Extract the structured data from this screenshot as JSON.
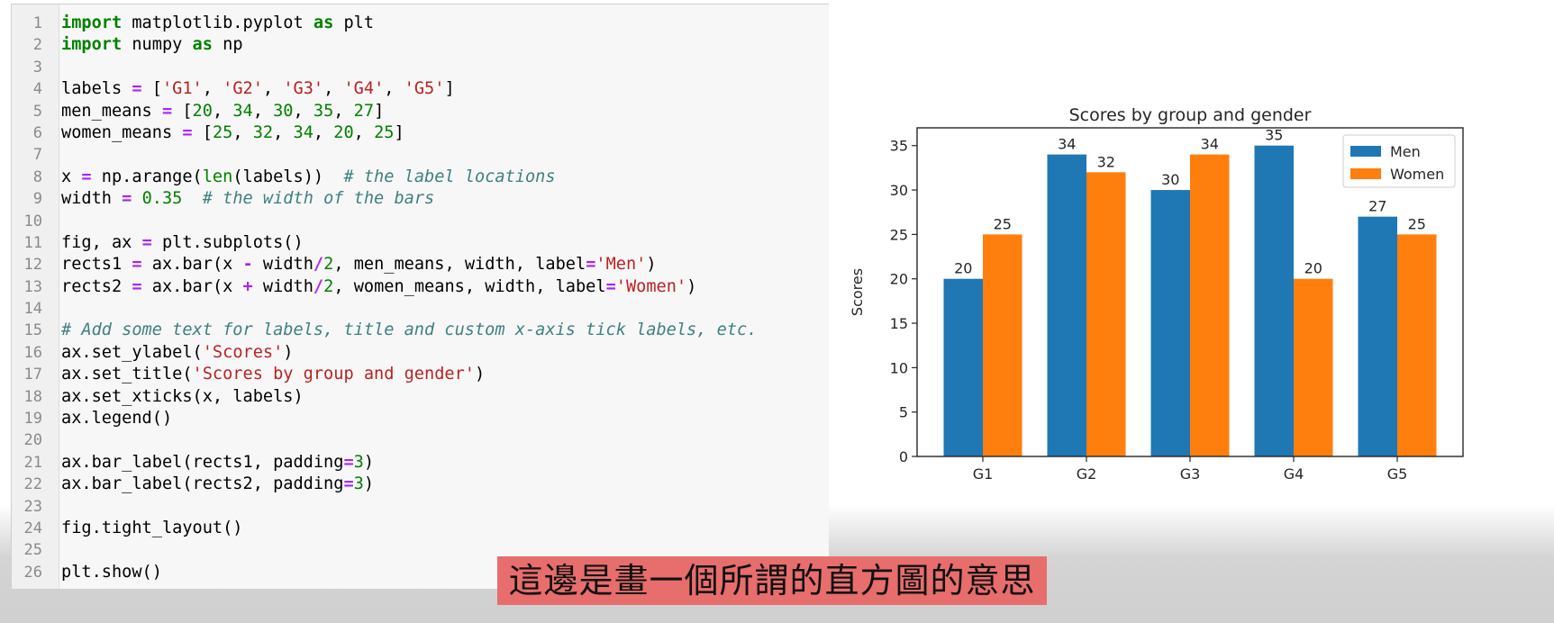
{
  "code": {
    "lines": [
      [
        [
          "kw",
          "import"
        ],
        [
          "plain",
          " matplotlib.pyplot "
        ],
        [
          "kw",
          "as"
        ],
        [
          "plain",
          " plt"
        ]
      ],
      [
        [
          "kw",
          "import"
        ],
        [
          "plain",
          " numpy "
        ],
        [
          "kw",
          "as"
        ],
        [
          "plain",
          " np"
        ]
      ],
      [],
      [
        [
          "plain",
          "labels "
        ],
        [
          "op",
          "="
        ],
        [
          "plain",
          " ["
        ],
        [
          "str",
          "'G1'"
        ],
        [
          "plain",
          ", "
        ],
        [
          "str",
          "'G2'"
        ],
        [
          "plain",
          ", "
        ],
        [
          "str",
          "'G3'"
        ],
        [
          "plain",
          ", "
        ],
        [
          "str",
          "'G4'"
        ],
        [
          "plain",
          ", "
        ],
        [
          "str",
          "'G5'"
        ],
        [
          "plain",
          "]"
        ]
      ],
      [
        [
          "plain",
          "men_means "
        ],
        [
          "op",
          "="
        ],
        [
          "plain",
          " ["
        ],
        [
          "num",
          "20"
        ],
        [
          "plain",
          ", "
        ],
        [
          "num",
          "34"
        ],
        [
          "plain",
          ", "
        ],
        [
          "num",
          "30"
        ],
        [
          "plain",
          ", "
        ],
        [
          "num",
          "35"
        ],
        [
          "plain",
          ", "
        ],
        [
          "num",
          "27"
        ],
        [
          "plain",
          "]"
        ]
      ],
      [
        [
          "plain",
          "women_means "
        ],
        [
          "op",
          "="
        ],
        [
          "plain",
          " ["
        ],
        [
          "num",
          "25"
        ],
        [
          "plain",
          ", "
        ],
        [
          "num",
          "32"
        ],
        [
          "plain",
          ", "
        ],
        [
          "num",
          "34"
        ],
        [
          "plain",
          ", "
        ],
        [
          "num",
          "20"
        ],
        [
          "plain",
          ", "
        ],
        [
          "num",
          "25"
        ],
        [
          "plain",
          "]"
        ]
      ],
      [],
      [
        [
          "plain",
          "x "
        ],
        [
          "op",
          "="
        ],
        [
          "plain",
          " np.arange("
        ],
        [
          "bi",
          "len"
        ],
        [
          "plain",
          "(labels))  "
        ],
        [
          "cm",
          "# the label locations"
        ]
      ],
      [
        [
          "plain",
          "width "
        ],
        [
          "op",
          "="
        ],
        [
          "plain",
          " "
        ],
        [
          "num",
          "0.35"
        ],
        [
          "plain",
          "  "
        ],
        [
          "cm",
          "# the width of the bars"
        ]
      ],
      [],
      [
        [
          "plain",
          "fig, ax "
        ],
        [
          "op",
          "="
        ],
        [
          "plain",
          " plt.subplots()"
        ]
      ],
      [
        [
          "plain",
          "rects1 "
        ],
        [
          "op",
          "="
        ],
        [
          "plain",
          " ax.bar(x "
        ],
        [
          "op",
          "-"
        ],
        [
          "plain",
          " width"
        ],
        [
          "op",
          "/"
        ],
        [
          "num",
          "2"
        ],
        [
          "plain",
          ", men_means, width, label"
        ],
        [
          "op",
          "="
        ],
        [
          "str",
          "'Men'"
        ],
        [
          "plain",
          ")"
        ]
      ],
      [
        [
          "plain",
          "rects2 "
        ],
        [
          "op",
          "="
        ],
        [
          "plain",
          " ax.bar(x "
        ],
        [
          "op",
          "+"
        ],
        [
          "plain",
          " width"
        ],
        [
          "op",
          "/"
        ],
        [
          "num",
          "2"
        ],
        [
          "plain",
          ", women_means, width, label"
        ],
        [
          "op",
          "="
        ],
        [
          "str",
          "'Women'"
        ],
        [
          "plain",
          ")"
        ]
      ],
      [],
      [
        [
          "cm",
          "# Add some text for labels, title and custom x-axis tick labels, etc."
        ]
      ],
      [
        [
          "plain",
          "ax.set_ylabel("
        ],
        [
          "str",
          "'Scores'"
        ],
        [
          "plain",
          ")"
        ]
      ],
      [
        [
          "plain",
          "ax.set_title("
        ],
        [
          "str",
          "'Scores by group and gender'"
        ],
        [
          "plain",
          ")"
        ]
      ],
      [
        [
          "plain",
          "ax.set_xticks(x, labels)"
        ]
      ],
      [
        [
          "plain",
          "ax.legend()"
        ]
      ],
      [],
      [
        [
          "plain",
          "ax.bar_label(rects1, padding"
        ],
        [
          "op",
          "="
        ],
        [
          "num",
          "3"
        ],
        [
          "plain",
          ")"
        ]
      ],
      [
        [
          "plain",
          "ax.bar_label(rects2, padding"
        ],
        [
          "op",
          "="
        ],
        [
          "num",
          "3"
        ],
        [
          "plain",
          ")"
        ]
      ],
      [],
      [
        [
          "plain",
          "fig.tight_layout()"
        ]
      ],
      [],
      [
        [
          "plain",
          "plt.show()"
        ]
      ]
    ]
  },
  "chart_data": {
    "type": "bar",
    "title": "Scores by group and gender",
    "xlabel": "",
    "ylabel": "Scores",
    "categories": [
      "G1",
      "G2",
      "G3",
      "G4",
      "G5"
    ],
    "series": [
      {
        "name": "Men",
        "values": [
          20,
          34,
          30,
          35,
          27
        ],
        "color": "#1f77b4"
      },
      {
        "name": "Women",
        "values": [
          25,
          32,
          34,
          20,
          25
        ],
        "color": "#ff7f0e"
      }
    ],
    "ylim": [
      0,
      37
    ],
    "yticks": [
      0,
      5,
      10,
      15,
      20,
      25,
      30,
      35
    ],
    "legend_position": "top-right",
    "grid": false
  },
  "caption": {
    "text": "這邊是畫一個所謂的直方圖的意思"
  },
  "colors": {
    "keyword": "#008000",
    "operator": "#aa22ff",
    "string": "#ba2121",
    "number": "#008000",
    "comment": "#408080",
    "caption_bg": "#e86d6d"
  }
}
